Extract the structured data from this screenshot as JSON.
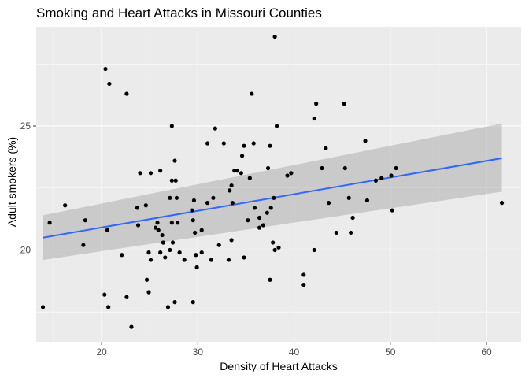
{
  "chart_data": {
    "type": "scatter",
    "title": "Smoking and Heart Attacks in Missouri Counties",
    "xlabel": "Density of Heart Attacks",
    "ylabel": "Adult smokers (%)",
    "xlim": [
      13.2,
      63.6
    ],
    "ylim": [
      16.3,
      29.0
    ],
    "x_ticks": [
      20,
      30,
      40,
      50,
      60
    ],
    "x_tick_labels": [
      "20",
      "30",
      "40",
      "50",
      "60"
    ],
    "y_ticks": [
      20,
      25
    ],
    "y_tick_labels": [
      "20",
      "25"
    ],
    "grid": true,
    "legend": "none",
    "points": [
      [
        13.9,
        17.7
      ],
      [
        14.6,
        21.1
      ],
      [
        16.2,
        21.8
      ],
      [
        18.1,
        20.2
      ],
      [
        18.3,
        21.2
      ],
      [
        20.3,
        18.2
      ],
      [
        20.4,
        27.3
      ],
      [
        20.6,
        20.8
      ],
      [
        20.7,
        17.7
      ],
      [
        20.8,
        26.7
      ],
      [
        22.1,
        19.8
      ],
      [
        22.6,
        26.3
      ],
      [
        22.6,
        18.1
      ],
      [
        23.1,
        16.9
      ],
      [
        23.7,
        21.7
      ],
      [
        23.8,
        21.0
      ],
      [
        24.0,
        23.1
      ],
      [
        24.6,
        21.8
      ],
      [
        24.7,
        18.8
      ],
      [
        24.9,
        19.9
      ],
      [
        24.9,
        18.3
      ],
      [
        25.1,
        19.6
      ],
      [
        25.1,
        23.1
      ],
      [
        25.6,
        20.9
      ],
      [
        25.8,
        21.1
      ],
      [
        25.9,
        20.8
      ],
      [
        26.1,
        19.9
      ],
      [
        26.1,
        23.2
      ],
      [
        26.3,
        20.6
      ],
      [
        26.4,
        20.3
      ],
      [
        26.6,
        19.7
      ],
      [
        26.9,
        17.7
      ],
      [
        27.1,
        22.1
      ],
      [
        27.1,
        20.0
      ],
      [
        27.3,
        22.8
      ],
      [
        27.3,
        25.0
      ],
      [
        27.3,
        21.1
      ],
      [
        27.4,
        20.3
      ],
      [
        27.6,
        23.6
      ],
      [
        27.6,
        17.9
      ],
      [
        27.7,
        22.8
      ],
      [
        27.8,
        22.1
      ],
      [
        27.9,
        21.1
      ],
      [
        28.1,
        19.9
      ],
      [
        28.6,
        19.6
      ],
      [
        29.4,
        21.6
      ],
      [
        29.5,
        17.9
      ],
      [
        29.5,
        21.2
      ],
      [
        29.6,
        22.0
      ],
      [
        29.7,
        20.7
      ],
      [
        29.8,
        19.8
      ],
      [
        29.9,
        19.3
      ],
      [
        30.4,
        20.8
      ],
      [
        30.4,
        19.9
      ],
      [
        31.0,
        24.3
      ],
      [
        31.0,
        21.9
      ],
      [
        31.4,
        19.6
      ],
      [
        31.6,
        22.1
      ],
      [
        31.8,
        24.9
      ],
      [
        32.2,
        20.2
      ],
      [
        32.7,
        24.3
      ],
      [
        33.2,
        19.6
      ],
      [
        33.3,
        22.4
      ],
      [
        33.5,
        22.6
      ],
      [
        33.5,
        20.4
      ],
      [
        33.6,
        21.9
      ],
      [
        33.8,
        23.2
      ],
      [
        34.1,
        23.2
      ],
      [
        34.5,
        23.1
      ],
      [
        34.6,
        23.8
      ],
      [
        34.8,
        19.7
      ],
      [
        34.8,
        24.2
      ],
      [
        35.2,
        21.2
      ],
      [
        35.4,
        22.9
      ],
      [
        35.6,
        26.3
      ],
      [
        35.8,
        24.3
      ],
      [
        35.9,
        21.7
      ],
      [
        36.4,
        21.3
      ],
      [
        36.4,
        20.9
      ],
      [
        36.8,
        21.0
      ],
      [
        37.2,
        21.5
      ],
      [
        37.3,
        23.3
      ],
      [
        37.5,
        24.2
      ],
      [
        37.5,
        18.8
      ],
      [
        37.6,
        21.7
      ],
      [
        37.8,
        20.3
      ],
      [
        37.9,
        22.1
      ],
      [
        38.0,
        28.6
      ],
      [
        38.0,
        20.0
      ],
      [
        38.2,
        25.0
      ],
      [
        38.4,
        20.1
      ],
      [
        39.3,
        23.0
      ],
      [
        39.7,
        23.1
      ],
      [
        41.0,
        19.0
      ],
      [
        41.0,
        18.6
      ],
      [
        42.1,
        25.3
      ],
      [
        42.1,
        20.0
      ],
      [
        42.3,
        25.9
      ],
      [
        42.9,
        23.3
      ],
      [
        43.3,
        24.1
      ],
      [
        43.6,
        21.9
      ],
      [
        44.4,
        20.7
      ],
      [
        45.2,
        25.9
      ],
      [
        45.3,
        23.3
      ],
      [
        45.7,
        22.1
      ],
      [
        45.9,
        20.7
      ],
      [
        46.1,
        21.3
      ],
      [
        47.4,
        24.4
      ],
      [
        47.6,
        22.0
      ],
      [
        48.5,
        22.8
      ],
      [
        49.1,
        22.9
      ],
      [
        50.1,
        23.0
      ],
      [
        50.2,
        21.6
      ],
      [
        50.6,
        23.3
      ],
      [
        61.6,
        21.9
      ]
    ],
    "fit": {
      "method": "linear",
      "x": [
        13.9,
        61.6
      ],
      "y": [
        20.5,
        23.7
      ],
      "ci_lower": [
        19.6,
        22.35
      ],
      "ci_upper": [
        21.4,
        25.1
      ]
    },
    "colors": {
      "plot_background": "#EBEBEB",
      "grid_major": "#FFFFFF",
      "point": "#000000",
      "fit_line": "#3366FF",
      "confidence_band": "#999999",
      "tick_text": "#4D4D4D",
      "tick_mark": "#333333"
    }
  }
}
